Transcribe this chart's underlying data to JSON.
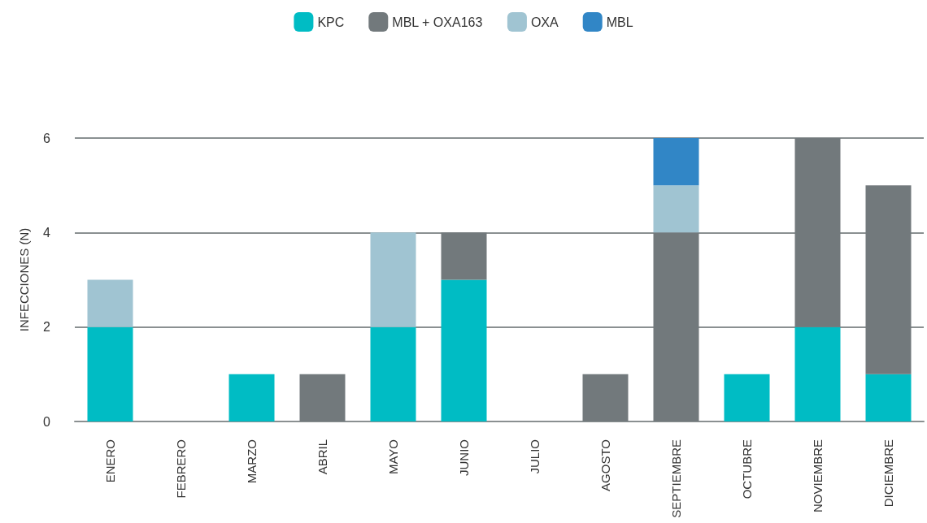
{
  "chart_data": {
    "type": "bar",
    "stacked": true,
    "ylabel": "INFECCIONES (N)",
    "categories": [
      "ENERO",
      "FEBRERO",
      "MARZO",
      "ABRIL",
      "MAYO",
      "JUNIO",
      "JULIO",
      "AGOSTO",
      "SEPTIEMBRE",
      "OCTUBRE",
      "NOVIEMBRE",
      "DICIEMBRE"
    ],
    "series": [
      {
        "name": "KPC",
        "color": "#00bcc4",
        "values": [
          2,
          0,
          1,
          0,
          2,
          3,
          0,
          0,
          0,
          1,
          2,
          1
        ]
      },
      {
        "name": "MBL + OXA163",
        "color": "#72797c",
        "values": [
          0,
          0,
          0,
          1,
          0,
          1,
          0,
          1,
          4,
          0,
          4,
          4
        ]
      },
      {
        "name": "OXA",
        "color": "#a0c4d2",
        "values": [
          1,
          0,
          0,
          0,
          2,
          0,
          0,
          0,
          1,
          0,
          0,
          0
        ]
      },
      {
        "name": "MBL",
        "color": "#3186c6",
        "values": [
          0,
          0,
          0,
          0,
          0,
          0,
          0,
          0,
          1,
          0,
          0,
          0
        ]
      }
    ],
    "ylim": [
      0,
      6
    ],
    "yticks": [
      0,
      2,
      4,
      6
    ],
    "grid": "y",
    "legend": "top"
  }
}
